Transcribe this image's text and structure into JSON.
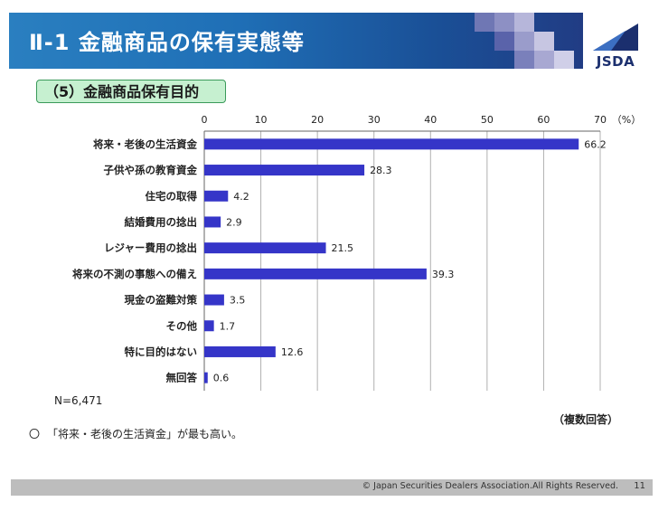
{
  "header": {
    "title": "Ⅱ-1  金融商品の保有実態等",
    "colors": {
      "bar": "#2b62b3",
      "squares": "#a7a6cf"
    }
  },
  "logo": {
    "text": "JSDA"
  },
  "section": {
    "subtitle": "（5）金融商品保有目的"
  },
  "chart_data": {
    "type": "bar",
    "orientation": "horizontal",
    "unit_label": "（%）",
    "xlim": [
      0,
      70
    ],
    "ticks": [
      "0",
      "10",
      "20",
      "30",
      "40",
      "50",
      "60",
      "70"
    ],
    "grid": true,
    "bar_color": "#3535c8",
    "categories": [
      "将来・老後の生活資金",
      "子供や孫の教育資金",
      "住宅の取得",
      "結婚費用の捻出",
      "レジャー費用の捻出",
      "将来の不測の事態への備え",
      "現金の盗難対策",
      "その他",
      "特に目的はない",
      "無回答"
    ],
    "values": [
      66.2,
      28.3,
      4.2,
      2.9,
      21.5,
      39.3,
      3.5,
      1.7,
      12.6,
      0.6
    ],
    "value_labels": [
      "66.2",
      "28.3",
      "4.2",
      "2.9",
      "21.5",
      "39.3",
      "3.5",
      "1.7",
      "12.6",
      "0.6"
    ]
  },
  "notes": {
    "n": "N=6,471",
    "multiple_answer": "（複数回答）",
    "bullet": "〇",
    "comment": "「将来・老後の生活資金」が最も高い。"
  },
  "footer": {
    "copyright": "© Japan Securities Dealers Association.All Rights Reserved.",
    "page": "11"
  }
}
